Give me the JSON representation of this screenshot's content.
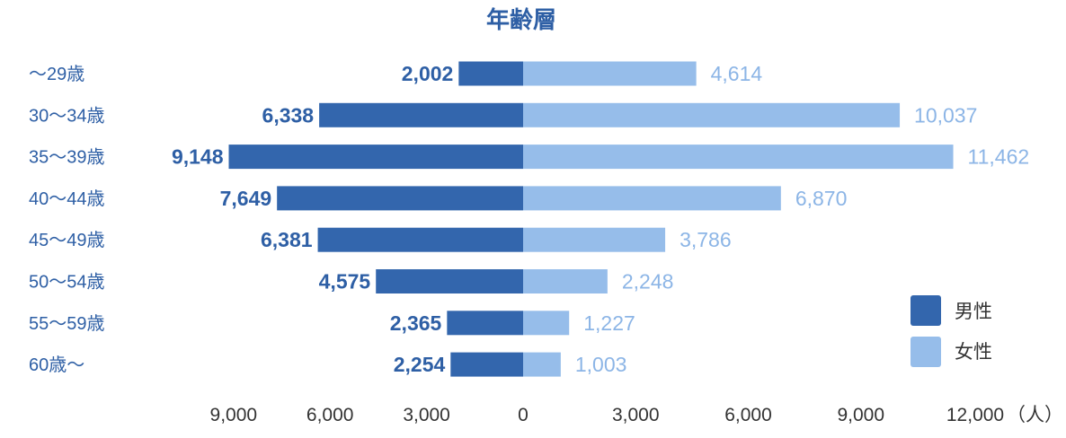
{
  "chart_data": {
    "type": "bar",
    "orientation": "horizontal-diverging",
    "title": "年齢層",
    "categories": [
      "～29歳",
      "30～34歳",
      "35～39歳",
      "40～44歳",
      "45～49歳",
      "50～54歳",
      "55～59歳",
      "60歳～"
    ],
    "series": [
      {
        "name": "男性",
        "color": "#3366AD",
        "side": "left",
        "values": [
          2002,
          6338,
          9148,
          7649,
          6381,
          4575,
          2365,
          2254
        ],
        "labels": [
          "2,002",
          "6,338",
          "9,148",
          "7,649",
          "6,381",
          "4,575",
          "2,365",
          "2,254"
        ]
      },
      {
        "name": "女性",
        "color": "#96BDEA",
        "side": "right",
        "values": [
          4614,
          10037,
          11462,
          6870,
          3786,
          2248,
          1227,
          1003
        ],
        "labels": [
          "4,614",
          "10,037",
          "11,462",
          "6,870",
          "3,786",
          "2,248",
          "1,227",
          "1,003"
        ]
      }
    ],
    "xlim_left": [
      0,
      9000
    ],
    "xlim_right": [
      0,
      12000
    ],
    "x_ticks_left": [
      "9,000",
      "6,000",
      "3,000"
    ],
    "x_ticks_right": [
      "0",
      "3,000",
      "6,000",
      "9,000",
      "12,000"
    ],
    "x_unit": "（人）",
    "grid": false,
    "legend_position": "bottom-right"
  }
}
